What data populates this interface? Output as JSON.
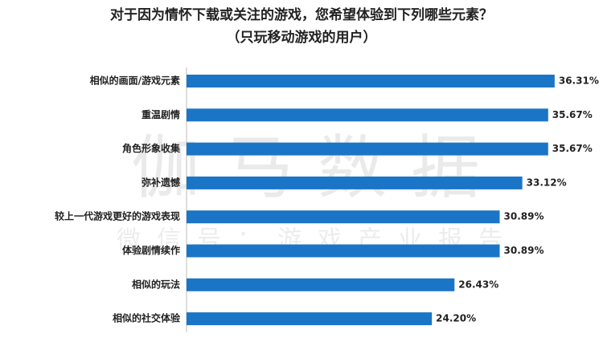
{
  "chart_data": {
    "type": "bar",
    "orientation": "horizontal",
    "title": [
      "对于因为情怀下载或关注的游戏，您希望体验到下列哪些元素？",
      "（只玩移动游戏的用户）"
    ],
    "watermark": [
      "伽马数据",
      "微信号：游戏产业报告"
    ],
    "categories": [
      "相似的画面/游戏元素",
      "重温剧情",
      "角色形象收集",
      "弥补遗憾",
      "较上一代游戏更好的游戏表现",
      "体验剧情续作",
      "相似的玩法",
      "相似的社交体验"
    ],
    "values": [
      36.31,
      35.67,
      35.67,
      33.12,
      30.89,
      30.89,
      26.43,
      24.2
    ],
    "value_labels": [
      "36.31%",
      "35.67%",
      "35.67%",
      "33.12%",
      "30.89%",
      "30.89%",
      "26.43%",
      "24.20%"
    ],
    "color": "#1b75c6"
  }
}
